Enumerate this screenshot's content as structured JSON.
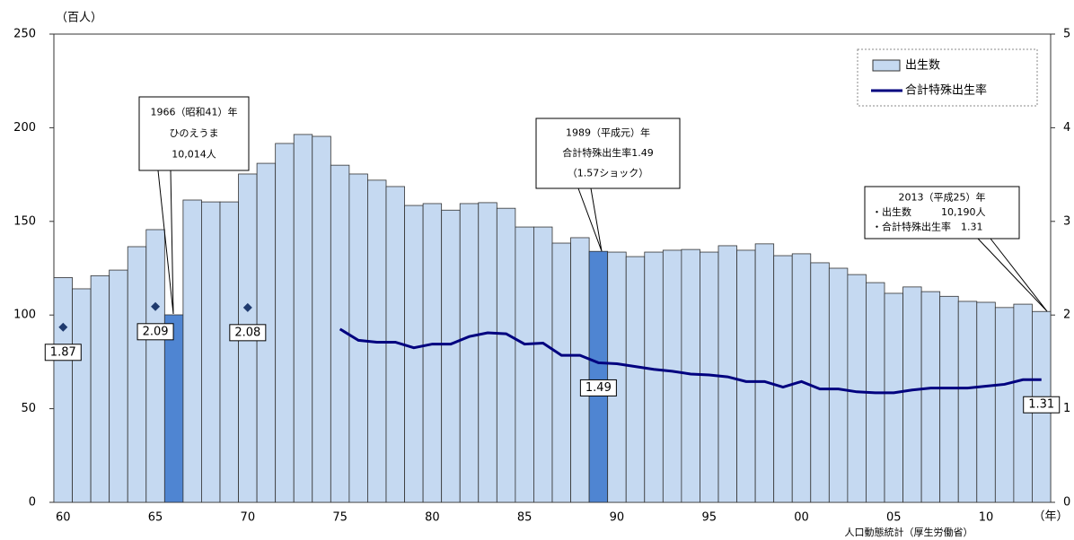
{
  "chart_data": {
    "type": "bar-line",
    "y_unit": "（百人）",
    "x_unit": "（年）",
    "source": "人口動態統計（厚生労働省）",
    "categories": [
      "60",
      null,
      null,
      null,
      null,
      "65",
      null,
      null,
      null,
      null,
      "70",
      null,
      null,
      null,
      null,
      "75",
      null,
      null,
      null,
      null,
      "80",
      null,
      null,
      null,
      null,
      "85",
      null,
      null,
      null,
      null,
      "90",
      null,
      null,
      null,
      null,
      "95",
      null,
      null,
      null,
      null,
      "00",
      null,
      null,
      null,
      null,
      "05",
      null,
      null,
      null,
      null,
      "10",
      null,
      null,
      null
    ],
    "series": [
      {
        "name": "出生数",
        "type": "bar",
        "color": "#c5d9f1",
        "colors": [
          "#c5d9f1",
          "#c5d9f1",
          "#c5d9f1",
          "#c5d9f1",
          "#c5d9f1",
          "#c5d9f1",
          "#4f85d2",
          "#c5d9f1",
          "#c5d9f1",
          "#c5d9f1",
          "#c5d9f1",
          "#c5d9f1",
          "#c5d9f1",
          "#c5d9f1",
          "#c5d9f1",
          "#c5d9f1",
          "#c5d9f1",
          "#c5d9f1",
          "#c5d9f1",
          "#c5d9f1",
          "#c5d9f1",
          "#c5d9f1",
          "#c5d9f1",
          "#c5d9f1",
          "#c5d9f1",
          "#c5d9f1",
          "#c5d9f1",
          "#c5d9f1",
          "#c5d9f1",
          "#4f85d2",
          "#c5d9f1",
          "#c5d9f1",
          "#c5d9f1",
          "#c5d9f1",
          "#c5d9f1",
          "#c5d9f1",
          "#c5d9f1",
          "#c5d9f1",
          "#c5d9f1",
          "#c5d9f1",
          "#c5d9f1",
          "#c5d9f1",
          "#c5d9f1",
          "#c5d9f1",
          "#c5d9f1",
          "#c5d9f1",
          "#c5d9f1",
          "#c5d9f1",
          "#c5d9f1",
          "#c5d9f1",
          "#c5d9f1",
          "#c5d9f1",
          "#c5d9f1",
          "#c5d9f1"
        ],
        "values": [
          120,
          114,
          121,
          124,
          136.5,
          145.6,
          100.1,
          161.4,
          160.4,
          160.4,
          175.3,
          181,
          191.6,
          196.4,
          195.4,
          180,
          175.3,
          172,
          168.6,
          158.5,
          159.5,
          156,
          159.5,
          160,
          157,
          147,
          147,
          138.4,
          141.3,
          134,
          133.6,
          131.2,
          133.6,
          134.6,
          135,
          133.6,
          137,
          134.6,
          138,
          131.7,
          132.7,
          127.9,
          125,
          121.6,
          117.3,
          111.6,
          115,
          112.5,
          110,
          107.3,
          106.8,
          104,
          105.8,
          101.9
        ]
      },
      {
        "name": "合計特殊出生率",
        "type": "line",
        "axis": "y2",
        "color": "#00007f",
        "values": [
          1.87,
          null,
          null,
          null,
          null,
          2.09,
          null,
          null,
          null,
          null,
          2.08,
          null,
          null,
          null,
          null,
          1.85,
          1.73,
          1.71,
          1.71,
          1.65,
          1.69,
          1.69,
          1.77,
          1.81,
          1.8,
          1.69,
          1.7,
          1.57,
          1.57,
          1.49,
          1.48,
          1.45,
          1.42,
          1.4,
          1.37,
          1.36,
          1.34,
          1.29,
          1.29,
          1.23,
          1.29,
          1.21,
          1.21,
          1.18,
          1.17,
          1.17,
          1.2,
          1.22,
          1.22,
          1.22,
          1.24,
          1.26,
          1.31,
          1.31
        ],
        "value_labels": [
          "1.87",
          null,
          null,
          null,
          null,
          "2.09",
          null,
          null,
          null,
          null,
          "2.08",
          null,
          null,
          null,
          null,
          null,
          null,
          null,
          null,
          null,
          null,
          null,
          null,
          null,
          null,
          null,
          null,
          null,
          null,
          "1.49",
          null,
          null,
          null,
          null,
          null,
          null,
          null,
          null,
          null,
          null,
          null,
          null,
          null,
          null,
          null,
          null,
          null,
          null,
          null,
          null,
          null,
          null,
          null,
          "1.31"
        ]
      }
    ],
    "ylim": [
      0,
      250
    ],
    "yticks": [
      0,
      50,
      100,
      150,
      200,
      250
    ],
    "y2lim": [
      0,
      5
    ],
    "y2ticks": [
      0,
      1,
      2,
      3,
      4,
      5
    ],
    "legend": "top-right",
    "annotations": [
      {
        "lines": [
          "1966（昭和41）年",
          "ひのえうま",
          "10,014人"
        ]
      },
      {
        "lines": [
          "1989（平成元）年",
          "合計特殊出生率1.49",
          "（1.57ショック）"
        ]
      },
      {
        "lines": [
          "2013（平成25）年",
          "・出生数　　　10,190人",
          "・合計特殊出生率　1.31"
        ]
      }
    ]
  }
}
